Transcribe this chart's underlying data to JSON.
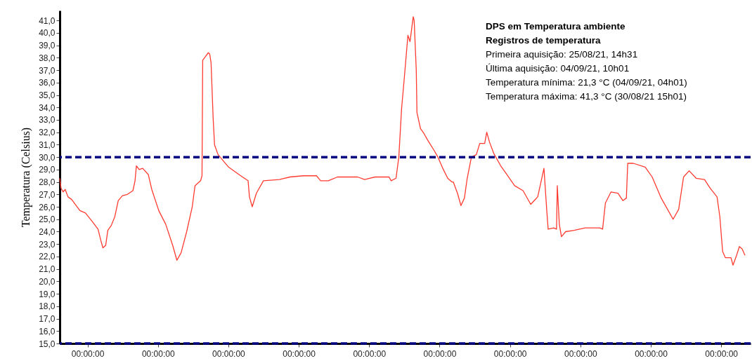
{
  "chart_data": {
    "type": "line",
    "title": "DPS em Temperatura ambiente",
    "subtitle": "Registros de temperatura",
    "ylabel": "Temperatura (Celsius)",
    "annotations": [
      "Primeira aquisição:      25/08/21, 14h31",
      "Última aquisição:         04/09/21, 10h01",
      "Temperatura mínima:   21,3 °C (04/09/21, 04h01)",
      "Temperatura máxima:   41,3 °C (30/08/21 15h01)"
    ],
    "xlim": [
      "--08-25T14:31",
      "--09-04T10:01"
    ],
    "xticks": [
      {
        "value": "--08-26",
        "label": "00:00:00"
      },
      {
        "value": "--08-27",
        "label": "00:00:00"
      },
      {
        "value": "--08-28",
        "label": "00:00:00"
      },
      {
        "value": "--08-29",
        "label": "00:00:00"
      },
      {
        "value": "--08-30",
        "label": "00:00:00"
      },
      {
        "value": "--08-31",
        "label": "00:00:00"
      },
      {
        "value": "--09-01",
        "label": "00:00:00"
      },
      {
        "value": "--09-02",
        "label": "00:00:00"
      },
      {
        "value": "--09-03",
        "label": "00:00:00"
      },
      {
        "value": "--09-04",
        "label": "00:00:00"
      }
    ],
    "ylim": [
      15,
      41.8
    ],
    "yticks": [
      {
        "value": 15,
        "label": "15,0"
      },
      {
        "value": 16,
        "label": "16,0"
      },
      {
        "value": 17,
        "label": "17,0"
      },
      {
        "value": 18,
        "label": "18,0"
      },
      {
        "value": 19,
        "label": "19,0"
      },
      {
        "value": 20,
        "label": "20,0"
      },
      {
        "value": 21,
        "label": "21,0"
      },
      {
        "value": 22,
        "label": "22,0"
      },
      {
        "value": 23,
        "label": "23,0"
      },
      {
        "value": 24,
        "label": "24,0"
      },
      {
        "value": 25,
        "label": "25,0"
      },
      {
        "value": 26,
        "label": "26,0"
      },
      {
        "value": 27,
        "label": "27,0"
      },
      {
        "value": 28,
        "label": "28,0"
      },
      {
        "value": 29,
        "label": "29,0"
      },
      {
        "value": 30,
        "label": "30,0"
      },
      {
        "value": 31,
        "label": "31,0"
      },
      {
        "value": 32,
        "label": "32,0"
      },
      {
        "value": 33,
        "label": "33,0"
      },
      {
        "value": 34,
        "label": "34,0"
      },
      {
        "value": 35,
        "label": "35,0"
      },
      {
        "value": 36,
        "label": "36,0"
      },
      {
        "value": 37,
        "label": "37,0"
      },
      {
        "value": 38,
        "label": "38,0"
      },
      {
        "value": 39,
        "label": "39,0"
      },
      {
        "value": 40,
        "label": "40,0"
      },
      {
        "value": 41,
        "label": "41,0"
      }
    ],
    "ref_lines": [
      {
        "axis": "y",
        "value": 30,
        "color": "#000080",
        "line_style": "dashed"
      },
      {
        "axis": "y",
        "value": 15,
        "color": "#000080",
        "line_style": "dashed"
      }
    ],
    "x": [
      "--08-25T14:31",
      "--08-25T14:58",
      "--08-25T15:40",
      "--08-25T16:23",
      "--08-25T17:20",
      "--08-25T18:32",
      "--08-25T21:23",
      "--08-25T23:17",
      "--08-26T01:40",
      "--08-26T03:34",
      "--08-26T04:31",
      "--08-26T05:14",
      "--08-26T06:11",
      "--08-26T06:54",
      "--08-26T08:05",
      "--08-26T09:17",
      "--08-26T10:28",
      "--08-26T11:54",
      "--08-26T13:34",
      "--08-26T15:28",
      "--08-26T16:11",
      "--08-26T16:39",
      "--08-26T17:36",
      "--08-26T18:47",
      "--08-26T20:42",
      "--08-26T21:53",
      "--08-27T00:16",
      "--08-27T02:38",
      "--08-27T05:01",
      "--08-27T06:27",
      "--08-27T07:53",
      "--08-27T09:47",
      "--08-27T11:41",
      "--08-27T12:38",
      "--08-27T14:32",
      "--08-27T15:01",
      "--08-27T15:15",
      "--08-27T16:12",
      "--08-27T17:09",
      "--08-27T17:38",
      "--08-27T18:06",
      "--08-27T18:49",
      "--08-27T19:17",
      "--08-27T20:29",
      "--08-27T21:12",
      "--08-28T00:03",
      "--08-28T02:26",
      "--08-28T04:49",
      "--08-28T06:43",
      "--08-28T07:11",
      "--08-28T08:08",
      "--08-28T09:34",
      "--08-28T11:57",
      "--08-28T17:25",
      "--08-28T20:59",
      "--08-29T01:31",
      "--08-29T06:02",
      "--08-29T07:27",
      "--08-29T10:05",
      "--08-29T13:10",
      "--08-29T20:04",
      "--08-29T22:27",
      "--08-30T02:01",
      "--08-30T06:46",
      "--08-30T07:29",
      "--08-30T09:09",
      "--08-30T10:06",
      "--08-30T11:03",
      "--08-30T12:01",
      "--08-30T13:12",
      "--08-30T13:55",
      "--08-30T15:01",
      "--08-30T15:20",
      "--08-30T16:03",
      "--08-30T16:17",
      "--08-30T17:29",
      "--08-30T18:40",
      "--08-30T19:52",
      "--08-30T22:14",
      "--08-30T23:26",
      "--08-31T01:05",
      "--08-31T02:46",
      "--08-31T04:11",
      "--08-31T04:40",
      "--08-31T06:05",
      "--08-31T07:17",
      "--08-31T08:28",
      "--08-31T09:25",
      "--08-31T10:51",
      "--08-31T12:31",
      "--08-31T13:42",
      "--08-31T15:22",
      "--08-31T16:05",
      "--08-31T17:02",
      "--08-31T18:28",
      "--08-31T20:50",
      "--08-31T23:13",
      "--09-01T01:35",
      "--09-01T04:27",
      "--09-01T07:04",
      "--09-01T09:27",
      "--09-01T11:35",
      "--09-01T12:32",
      "--09-01T13:01",
      "--09-01T14:55",
      "--09-01T15:52",
      "--09-01T16:07",
      "--09-01T16:49",
      "--09-01T17:32",
      "--09-01T18:58",
      "--09-01T21:49",
      "--09-02T01:37",
      "--09-02T06:37",
      "--09-02T07:34",
      "--09-02T08:31",
      "--09-02T10:26",
      "--09-02T12:48",
      "--09-02T14:28",
      "--09-02T15:40",
      "--09-02T16:08",
      "--09-02T18:02",
      "--09-02T22:05",
      "--09-03T00:28",
      "--09-03T03:33",
      "--09-03T07:36",
      "--09-03T09:30",
      "--09-03T11:10",
      "--09-03T13:04",
      "--09-03T15:27",
      "--09-03T18:19",
      "--09-03T20:13",
      "--09-03T22:35",
      "--09-03T23:32",
      "--09-04T00:29",
      "--09-04T01:26",
      "--09-04T03:20",
      "--09-04T04:01",
      "--09-04T05:15",
      "--09-04T06:12",
      "--09-04T07:09",
      "--09-04T08:06"
    ],
    "series": [
      {
        "color": "#ff3b30",
        "values": [
          28.3,
          27.5,
          27.2,
          27.4,
          26.8,
          26.6,
          25.7,
          25.5,
          24.8,
          24.2,
          23.3,
          22.7,
          22.9,
          24.1,
          24.5,
          25.2,
          26.5,
          26.9,
          27.0,
          27.3,
          28.1,
          29.3,
          29.0,
          29.1,
          28.6,
          27.4,
          25.7,
          24.6,
          22.9,
          21.7,
          22.3,
          24.0,
          26.0,
          27.7,
          28.1,
          28.5,
          37.8,
          38.1,
          38.4,
          38.3,
          37.6,
          33.1,
          31.0,
          30.2,
          30.0,
          29.2,
          28.8,
          28.4,
          28.1,
          26.8,
          26.0,
          27.1,
          28.1,
          28.2,
          28.4,
          28.5,
          28.5,
          28.1,
          28.1,
          28.4,
          28.4,
          28.2,
          28.4,
          28.4,
          28.1,
          28.3,
          30.0,
          33.9,
          36.5,
          39.8,
          39.3,
          41.3,
          41.0,
          37.0,
          33.6,
          32.3,
          31.9,
          31.4,
          30.5,
          30.0,
          29.1,
          28.3,
          28.0,
          28.0,
          27.1,
          26.1,
          26.7,
          28.3,
          30.0,
          30.2,
          31.1,
          31.1,
          32.0,
          31.2,
          30.3,
          29.3,
          28.5,
          27.7,
          27.3,
          26.2,
          26.8,
          29.1,
          25.7,
          24.2,
          24.3,
          24.2,
          27.7,
          24.6,
          23.6,
          24.0,
          24.1,
          24.3,
          24.3,
          24.2,
          26.3,
          27.2,
          27.1,
          26.5,
          26.7,
          29.5,
          29.5,
          29.2,
          28.4,
          26.7,
          25.0,
          25.8,
          28.4,
          28.9,
          28.3,
          28.2,
          27.5,
          26.8,
          25.2,
          22.4,
          21.9,
          21.9,
          21.3,
          22.1,
          22.8,
          22.6,
          22.1
        ]
      }
    ]
  }
}
